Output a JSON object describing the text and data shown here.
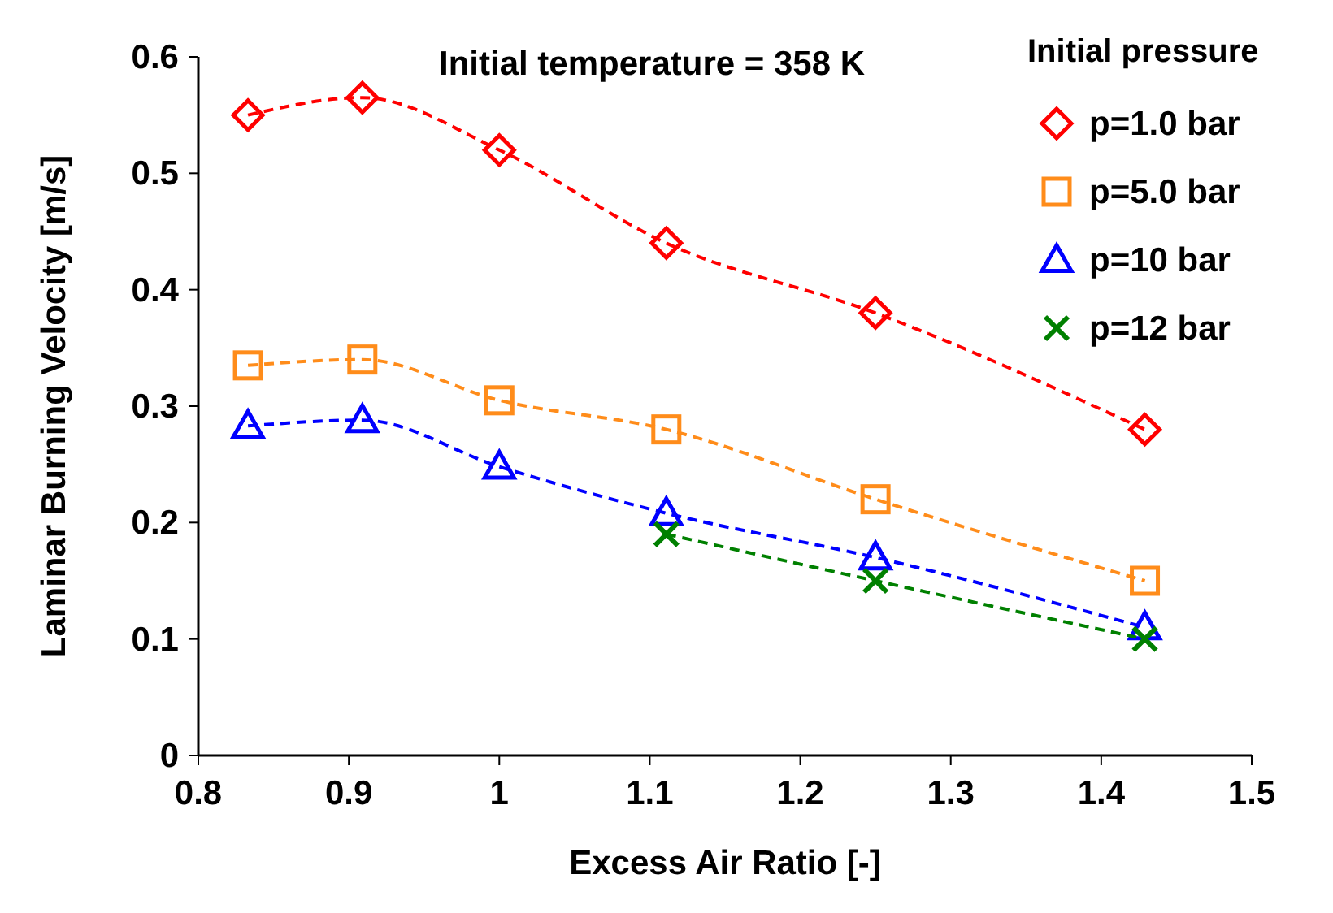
{
  "chart_data": {
    "type": "line",
    "xlabel": "Excess Air Ratio [-]",
    "ylabel": "Laminar Burning Velocity [m/s]",
    "legend_title": "Initial pressure",
    "annotations": [
      "Initial temperature = 358 K"
    ],
    "x": [
      0.833,
      0.909,
      1.0,
      1.111,
      1.25,
      1.429
    ],
    "xlim": [
      0.8,
      1.5
    ],
    "xticks": [
      0.8,
      0.9,
      1,
      1.1,
      1.2,
      1.3,
      1.4,
      1.5
    ],
    "ylim": [
      0,
      0.6
    ],
    "yticks": [
      0,
      0.1,
      0.2,
      0.3,
      0.4,
      0.5,
      0.6
    ],
    "grid": false,
    "legend": "top right",
    "line_style": "dashed",
    "series": [
      {
        "name": "p=1.0 bar",
        "color": "#ff0000",
        "marker": "diamond",
        "values": [
          0.55,
          0.565,
          0.52,
          0.44,
          0.38,
          0.28
        ]
      },
      {
        "name": "p=5.0 bar",
        "color": "#ff8c1a",
        "marker": "square",
        "values": [
          0.335,
          0.34,
          0.305,
          0.28,
          0.22,
          0.15
        ]
      },
      {
        "name": "p=10 bar",
        "color": "#0000ff",
        "marker": "triangle",
        "values": [
          0.283,
          0.288,
          0.248,
          0.208,
          0.17,
          0.11
        ]
      },
      {
        "name": "p=12 bar",
        "color": "#008000",
        "marker": "cross",
        "x": [
          1.111,
          1.25,
          1.429
        ],
        "values": [
          0.19,
          0.15,
          0.1
        ]
      }
    ]
  }
}
